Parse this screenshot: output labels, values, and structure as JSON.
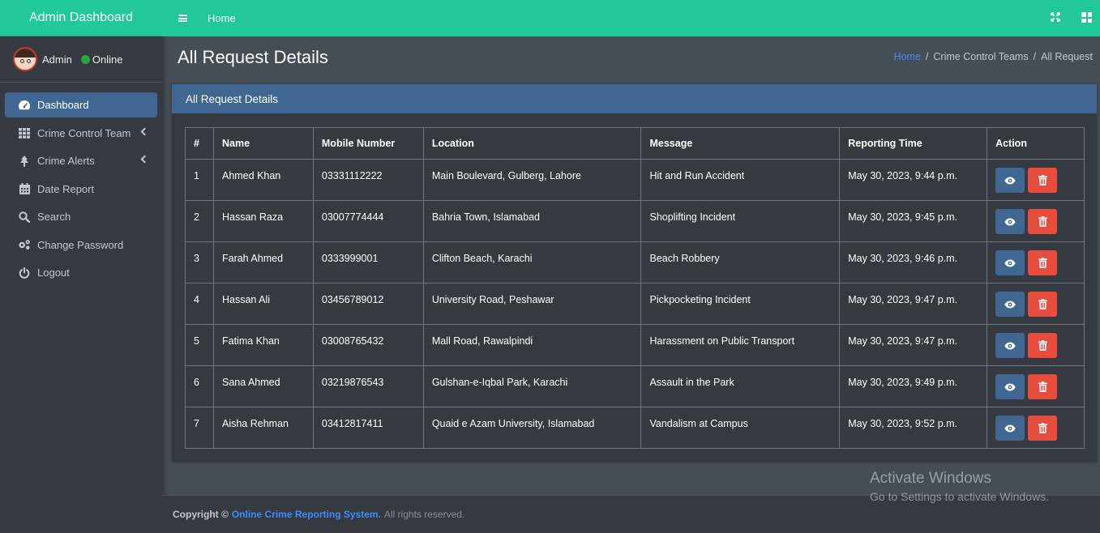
{
  "sidebar": {
    "brand": "Admin Dashboard",
    "user": {
      "name": "Admin",
      "status": "Online"
    },
    "items": [
      {
        "label": "Dashboard",
        "icon": "tachometer-icon",
        "active": true
      },
      {
        "label": "Crime Control Team",
        "icon": "grid-icon",
        "submenu": true
      },
      {
        "label": "Crime Alerts",
        "icon": "tree-icon",
        "submenu": true
      },
      {
        "label": "Date Report",
        "icon": "calendar-icon"
      },
      {
        "label": "Search",
        "icon": "search-icon"
      },
      {
        "label": "Change Password",
        "icon": "cogs-icon"
      },
      {
        "label": "Logout",
        "icon": "power-icon"
      }
    ]
  },
  "topbar": {
    "home": "Home"
  },
  "header": {
    "title": "All Request Details",
    "breadcrumb": {
      "home": "Home",
      "middle": "Crime Control Teams",
      "current": "All Request"
    }
  },
  "card": {
    "title": "All Request Details",
    "columns": [
      "#",
      "Name",
      "Mobile Number",
      "Location",
      "Message",
      "Reporting Time",
      "Action"
    ],
    "rows": [
      [
        "1",
        "Ahmed Khan",
        "03331112222",
        "Main Boulevard, Gulberg, Lahore",
        "Hit and Run Accident",
        "May 30, 2023, 9:44 p.m."
      ],
      [
        "2",
        "Hassan Raza",
        "03007774444",
        "Bahria Town, Islamabad",
        "Shoplifting Incident",
        "May 30, 2023, 9:45 p.m."
      ],
      [
        "3",
        "Farah Ahmed",
        "0333999001",
        "Clifton Beach, Karachi",
        "Beach Robbery",
        "May 30, 2023, 9:46 p.m."
      ],
      [
        "4",
        "Hassan Ali",
        "03456789012",
        "University Road, Peshawar",
        "Pickpocketing Incident",
        "May 30, 2023, 9:47 p.m."
      ],
      [
        "5",
        "Fatima Khan",
        "03008765432",
        "Mall Road, Rawalpindi",
        "Harassment on Public Transport",
        "May 30, 2023, 9:47 p.m."
      ],
      [
        "6",
        "Sana Ahmed",
        "03219876543",
        "Gulshan-e-Iqbal Park, Karachi",
        "Assault in the Park",
        "May 30, 2023, 9:49 p.m."
      ],
      [
        "7",
        "Aisha Rehman",
        "03412817411",
        "Quaid e Azam University, Islamabad",
        "Vandalism at Campus",
        "May 30, 2023, 9:52 p.m."
      ]
    ]
  },
  "footer": {
    "copyright": "Copyright ©",
    "system": "Online Crime Reporting System.",
    "rights": "All rights reserved."
  },
  "watermark": {
    "line1": "Activate Windows",
    "line2": "Go to Settings to activate Windows."
  },
  "colors": {
    "accent": "#20c997",
    "primary": "#3f6791",
    "danger": "#e74c3c",
    "online": "#28a745",
    "link": "#3f8cff"
  }
}
